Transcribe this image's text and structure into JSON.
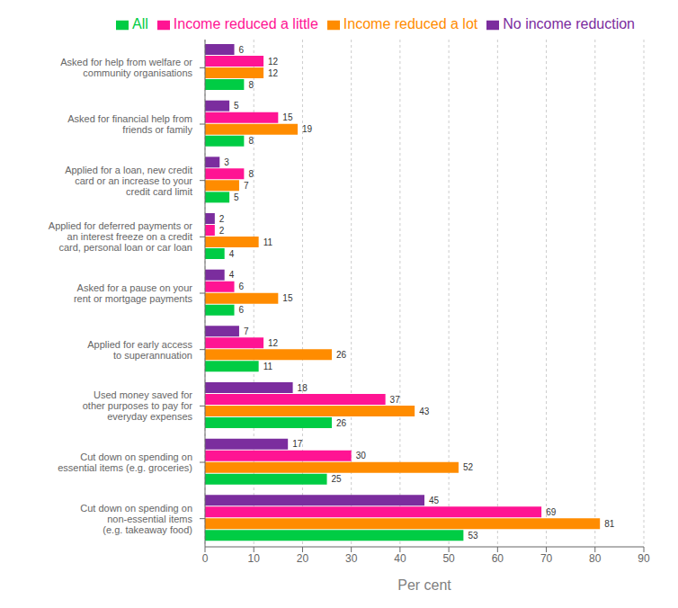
{
  "chart_data": {
    "type": "bar",
    "orientation": "horizontal",
    "categories": [
      "Cut down on spending on\nnon-essential items\n(e.g. takeaway food)",
      "Cut down on spending on\nessential items (e.g. groceries)",
      "Used money saved for\nother purposes to pay for\neveryday expenses",
      "Applied for early access\nto superannuation",
      "Asked for a pause on your\nrent or mortgage payments",
      "Applied for deferred payments or\nan interest freeze on a credit\ncard, personal loan or car loan",
      "Applied for a loan, new credit\ncard or an increase to your\ncredit card limit",
      "Asked for financial help from\nfriends or family",
      "Asked for help from welfare or\ncommunity organisations"
    ],
    "series": [
      {
        "name": "No income reduction",
        "color": "#7b2d9e",
        "values": [
          45,
          17,
          18,
          7,
          4,
          2,
          3,
          5,
          6
        ]
      },
      {
        "name": "Income reduced a little",
        "color": "#ff1493",
        "values": [
          69,
          30,
          37,
          12,
          6,
          2,
          8,
          15,
          12
        ]
      },
      {
        "name": "Income reduced a lot",
        "color": "#ff8c00",
        "values": [
          81,
          52,
          43,
          26,
          15,
          11,
          7,
          19,
          12
        ]
      },
      {
        "name": "All",
        "color": "#00cc44",
        "values": [
          53,
          25,
          26,
          11,
          6,
          4,
          5,
          8,
          8
        ]
      }
    ],
    "xlabel": "Per cent",
    "xlim": [
      0,
      90
    ],
    "xticks": [
      0,
      10,
      20,
      30,
      40,
      50,
      60,
      70,
      80,
      90
    ],
    "grid": true,
    "legend": "upper right",
    "data_labels": true
  }
}
